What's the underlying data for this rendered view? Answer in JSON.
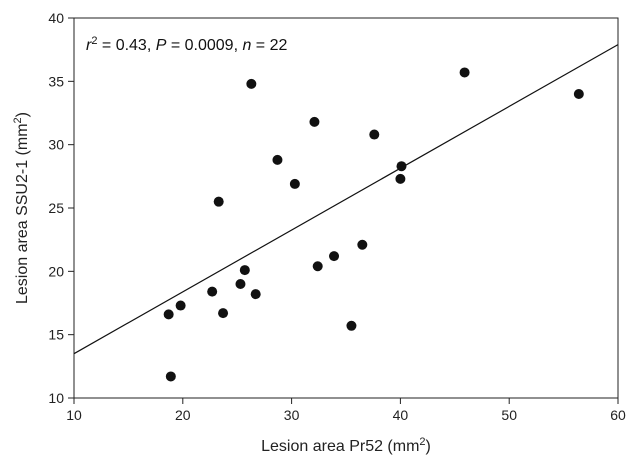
{
  "chart_data": {
    "type": "scatter",
    "title": "",
    "xlabel": "Lesion area Pr52 (mm",
    "xlabel_sup": "2",
    "xlabel_close": ")",
    "ylabel": "Lesion area SSU2-1 (mm",
    "ylabel_sup": "2",
    "ylabel_close": ")",
    "xlim": [
      10,
      60
    ],
    "ylim": [
      10,
      40
    ],
    "xticks": [
      10,
      20,
      30,
      40,
      50,
      60
    ],
    "yticks": [
      10,
      15,
      20,
      25,
      30,
      35,
      40
    ],
    "grid": false,
    "legend": "none",
    "annotation": {
      "r_symbol": "r",
      "r_sup": "2",
      "r_value": " = 0.43, ",
      "p_symbol": "P",
      "p_value": " = 0.0009, ",
      "n_symbol": "n",
      "n_value": " = 22"
    },
    "points": [
      {
        "x": 18.7,
        "y": 16.6
      },
      {
        "x": 18.9,
        "y": 11.7
      },
      {
        "x": 19.8,
        "y": 17.3
      },
      {
        "x": 22.7,
        "y": 18.4
      },
      {
        "x": 23.3,
        "y": 25.5
      },
      {
        "x": 23.7,
        "y": 16.7
      },
      {
        "x": 25.3,
        "y": 19.0
      },
      {
        "x": 25.7,
        "y": 20.1
      },
      {
        "x": 26.3,
        "y": 34.8
      },
      {
        "x": 26.7,
        "y": 18.2
      },
      {
        "x": 28.7,
        "y": 28.8
      },
      {
        "x": 30.3,
        "y": 26.9
      },
      {
        "x": 32.1,
        "y": 31.8
      },
      {
        "x": 32.4,
        "y": 20.4
      },
      {
        "x": 33.9,
        "y": 21.2
      },
      {
        "x": 35.5,
        "y": 15.7
      },
      {
        "x": 36.5,
        "y": 22.1
      },
      {
        "x": 37.6,
        "y": 30.8
      },
      {
        "x": 40.0,
        "y": 27.3
      },
      {
        "x": 40.1,
        "y": 28.3
      },
      {
        "x": 45.9,
        "y": 35.7
      },
      {
        "x": 56.4,
        "y": 34.0
      }
    ],
    "regression_line": {
      "x": [
        10,
        60
      ],
      "y": [
        13.5,
        37.9
      ]
    },
    "colors": {
      "marker": "#111111",
      "line": "#111111",
      "axis": "#222222"
    }
  }
}
